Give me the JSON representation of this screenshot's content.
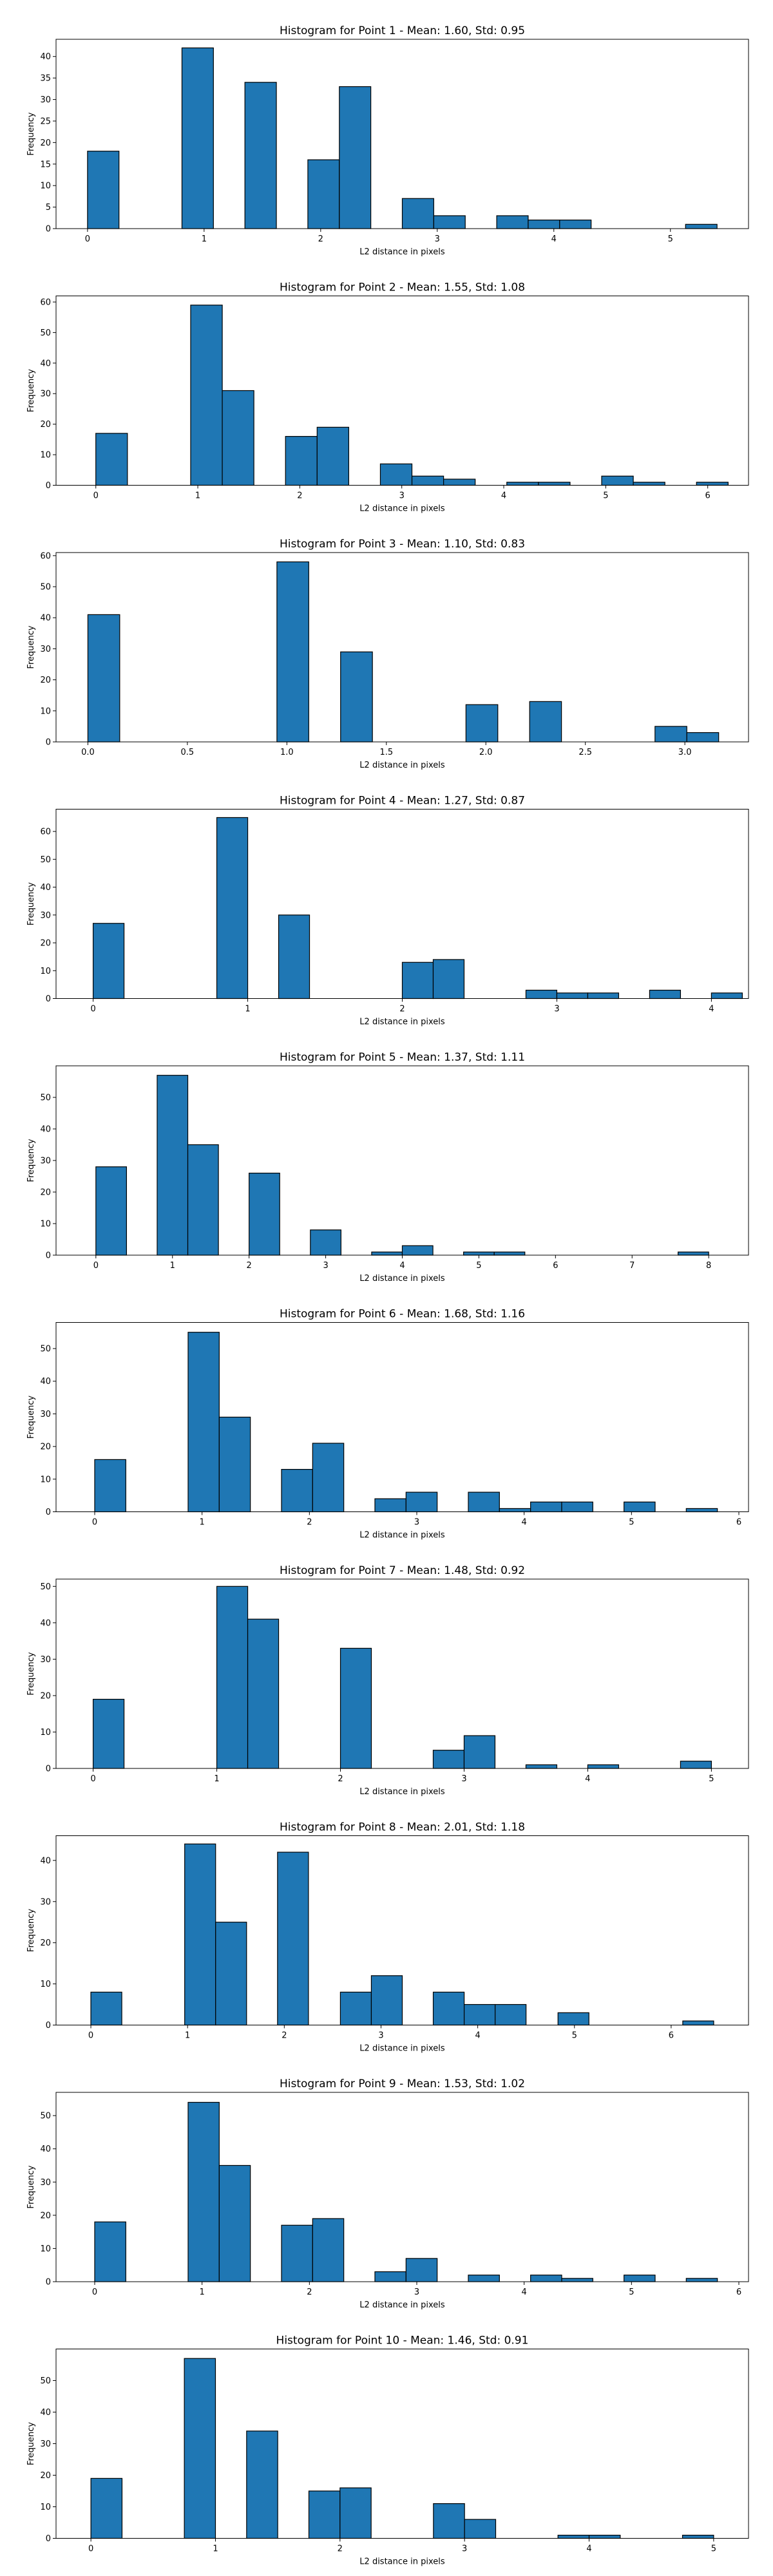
{
  "colors": {
    "bar_fill": "#1f77b4",
    "bar_edge": "#000000"
  },
  "chart_data": [
    {
      "type": "bar",
      "title": "Histogram for Point 1 - Mean: 1.60, Std: 0.95",
      "xlabel": "L2 distance in pixels",
      "ylabel": "Frequency",
      "xlim": [
        -0.27,
        5.67
      ],
      "xticks": [
        0,
        1,
        2,
        3,
        4,
        5
      ],
      "yticks": [
        0,
        5,
        10,
        15,
        20,
        25,
        30,
        35,
        40
      ],
      "ylim": [
        0,
        44
      ],
      "grid": false,
      "bins": [
        {
          "x0": 0.0,
          "x1": 0.27,
          "count": 18
        },
        {
          "x0": 0.81,
          "x1": 1.08,
          "count": 42
        },
        {
          "x0": 1.35,
          "x1": 1.62,
          "count": 34
        },
        {
          "x0": 1.89,
          "x1": 2.16,
          "count": 16
        },
        {
          "x0": 2.16,
          "x1": 2.43,
          "count": 33
        },
        {
          "x0": 2.7,
          "x1": 2.97,
          "count": 7
        },
        {
          "x0": 2.97,
          "x1": 3.24,
          "count": 3
        },
        {
          "x0": 3.51,
          "x1": 3.78,
          "count": 3
        },
        {
          "x0": 3.78,
          "x1": 4.05,
          "count": 2
        },
        {
          "x0": 4.05,
          "x1": 4.32,
          "count": 2
        },
        {
          "x0": 5.13,
          "x1": 5.4,
          "count": 1
        }
      ]
    },
    {
      "type": "bar",
      "title": "Histogram for Point 2 - Mean: 1.55, Std: 1.08",
      "xlabel": "L2 distance in pixels",
      "ylabel": "Frequency",
      "xlim": [
        -0.39,
        6.4
      ],
      "xticks": [
        0,
        1,
        2,
        3,
        4,
        5,
        6
      ],
      "yticks": [
        0,
        10,
        20,
        30,
        40,
        50,
        60
      ],
      "ylim": [
        0,
        62
      ],
      "grid": false,
      "bins": [
        {
          "x0": 0.0,
          "x1": 0.31,
          "count": 17
        },
        {
          "x0": 0.93,
          "x1": 1.24,
          "count": 59
        },
        {
          "x0": 1.24,
          "x1": 1.55,
          "count": 31
        },
        {
          "x0": 1.86,
          "x1": 2.17,
          "count": 16
        },
        {
          "x0": 2.17,
          "x1": 2.48,
          "count": 19
        },
        {
          "x0": 2.79,
          "x1": 3.1,
          "count": 7
        },
        {
          "x0": 3.1,
          "x1": 3.41,
          "count": 3
        },
        {
          "x0": 3.41,
          "x1": 3.72,
          "count": 2
        },
        {
          "x0": 4.03,
          "x1": 4.34,
          "count": 1
        },
        {
          "x0": 4.34,
          "x1": 4.65,
          "count": 1
        },
        {
          "x0": 4.96,
          "x1": 5.27,
          "count": 3
        },
        {
          "x0": 5.27,
          "x1": 5.58,
          "count": 1
        },
        {
          "x0": 5.89,
          "x1": 6.2,
          "count": 1
        }
      ]
    },
    {
      "type": "bar",
      "title": "Histogram for Point 3 - Mean: 1.10, Std: 0.83",
      "xlabel": "L2 distance in pixels",
      "ylabel": "Frequency",
      "xlim": [
        -0.16,
        3.32
      ],
      "xticks": [
        0.0,
        0.5,
        1.0,
        1.5,
        2.0,
        2.5,
        3.0
      ],
      "xtick_labels": [
        "0.0",
        "0.5",
        "1.0",
        "1.5",
        "2.0",
        "2.5",
        "3.0"
      ],
      "yticks": [
        0,
        10,
        20,
        30,
        40,
        50,
        60
      ],
      "ylim": [
        0,
        61
      ],
      "grid": false,
      "bins": [
        {
          "x0": 0.0,
          "x1": 0.16,
          "count": 41
        },
        {
          "x0": 0.95,
          "x1": 1.11,
          "count": 58
        },
        {
          "x0": 1.27,
          "x1": 1.43,
          "count": 29
        },
        {
          "x0": 1.9,
          "x1": 2.06,
          "count": 12
        },
        {
          "x0": 2.22,
          "x1": 2.38,
          "count": 13
        },
        {
          "x0": 2.85,
          "x1": 3.01,
          "count": 5
        },
        {
          "x0": 3.01,
          "x1": 3.17,
          "count": 3
        }
      ]
    },
    {
      "type": "bar",
      "title": "Histogram for Point 4 - Mean: 1.27, Std: 0.87",
      "xlabel": "L2 distance in pixels",
      "ylabel": "Frequency",
      "xlim": [
        -0.24,
        4.24
      ],
      "xticks": [
        0,
        1,
        2,
        3,
        4
      ],
      "yticks": [
        0,
        10,
        20,
        30,
        40,
        50,
        60
      ],
      "ylim": [
        0,
        68
      ],
      "grid": false,
      "bins": [
        {
          "x0": 0.0,
          "x1": 0.2,
          "count": 27
        },
        {
          "x0": 0.8,
          "x1": 1.0,
          "count": 65
        },
        {
          "x0": 1.2,
          "x1": 1.4,
          "count": 30
        },
        {
          "x0": 2.0,
          "x1": 2.2,
          "count": 13
        },
        {
          "x0": 2.2,
          "x1": 2.4,
          "count": 14
        },
        {
          "x0": 2.8,
          "x1": 3.0,
          "count": 3
        },
        {
          "x0": 3.0,
          "x1": 3.2,
          "count": 2
        },
        {
          "x0": 3.2,
          "x1": 3.4,
          "count": 2
        },
        {
          "x0": 3.6,
          "x1": 3.8,
          "count": 3
        },
        {
          "x0": 4.0,
          "x1": 4.2,
          "count": 2
        }
      ]
    },
    {
      "type": "bar",
      "title": "Histogram for Point 5 - Mean: 1.37, Std: 1.11",
      "xlabel": "L2 distance in pixels",
      "ylabel": "Frequency",
      "xlim": [
        -0.52,
        8.52
      ],
      "xticks": [
        0,
        1,
        2,
        3,
        4,
        5,
        6,
        7,
        8
      ],
      "yticks": [
        0,
        10,
        20,
        30,
        40,
        50
      ],
      "ylim": [
        0,
        60
      ],
      "grid": false,
      "bins": [
        {
          "x0": 0.0,
          "x1": 0.4,
          "count": 28
        },
        {
          "x0": 0.8,
          "x1": 1.2,
          "count": 57
        },
        {
          "x0": 1.2,
          "x1": 1.6,
          "count": 35
        },
        {
          "x0": 2.0,
          "x1": 2.4,
          "count": 26
        },
        {
          "x0": 2.8,
          "x1": 3.2,
          "count": 8
        },
        {
          "x0": 3.6,
          "x1": 4.0,
          "count": 1
        },
        {
          "x0": 4.0,
          "x1": 4.4,
          "count": 3
        },
        {
          "x0": 4.8,
          "x1": 5.2,
          "count": 1
        },
        {
          "x0": 5.2,
          "x1": 5.6,
          "count": 1
        },
        {
          "x0": 7.6,
          "x1": 8.0,
          "count": 1
        }
      ]
    },
    {
      "type": "bar",
      "title": "Histogram for Point 6 - Mean: 1.68, Std: 1.16",
      "xlabel": "L2 distance in pixels",
      "ylabel": "Frequency",
      "xlim": [
        -0.36,
        6.09
      ],
      "xticks": [
        0,
        1,
        2,
        3,
        4,
        5,
        6
      ],
      "yticks": [
        0,
        10,
        20,
        30,
        40,
        50
      ],
      "ylim": [
        0,
        58
      ],
      "grid": false,
      "bins": [
        {
          "x0": 0.0,
          "x1": 0.29,
          "count": 16
        },
        {
          "x0": 0.87,
          "x1": 1.16,
          "count": 55
        },
        {
          "x0": 1.16,
          "x1": 1.45,
          "count": 29
        },
        {
          "x0": 1.74,
          "x1": 2.03,
          "count": 13
        },
        {
          "x0": 2.03,
          "x1": 2.32,
          "count": 21
        },
        {
          "x0": 2.61,
          "x1": 2.9,
          "count": 4
        },
        {
          "x0": 2.9,
          "x1": 3.19,
          "count": 6
        },
        {
          "x0": 3.48,
          "x1": 3.77,
          "count": 6
        },
        {
          "x0": 3.77,
          "x1": 4.06,
          "count": 1
        },
        {
          "x0": 4.06,
          "x1": 4.35,
          "count": 3
        },
        {
          "x0": 4.35,
          "x1": 4.64,
          "count": 3
        },
        {
          "x0": 4.93,
          "x1": 5.22,
          "count": 3
        },
        {
          "x0": 5.51,
          "x1": 5.8,
          "count": 1
        }
      ]
    },
    {
      "type": "bar",
      "title": "Histogram for Point 7 - Mean: 1.48, Std: 0.92",
      "xlabel": "L2 distance in pixels",
      "ylabel": "Frequency",
      "xlim": [
        -0.3,
        5.3
      ],
      "xticks": [
        0,
        1,
        2,
        3,
        4,
        5
      ],
      "yticks": [
        0,
        10,
        20,
        30,
        40,
        50
      ],
      "ylim": [
        0,
        52
      ],
      "grid": false,
      "bins": [
        {
          "x0": 0.0,
          "x1": 0.25,
          "count": 19
        },
        {
          "x0": 1.0,
          "x1": 1.25,
          "count": 50
        },
        {
          "x0": 1.25,
          "x1": 1.5,
          "count": 41
        },
        {
          "x0": 2.0,
          "x1": 2.25,
          "count": 33
        },
        {
          "x0": 2.75,
          "x1": 3.0,
          "count": 5
        },
        {
          "x0": 3.0,
          "x1": 3.25,
          "count": 9
        },
        {
          "x0": 3.5,
          "x1": 3.75,
          "count": 1
        },
        {
          "x0": 4.0,
          "x1": 4.25,
          "count": 1
        },
        {
          "x0": 4.75,
          "x1": 5.0,
          "count": 2
        }
      ]
    },
    {
      "type": "bar",
      "title": "Histogram for Point 8 - Mean: 2.01, Std: 1.18",
      "xlabel": "L2 distance in pixels",
      "ylabel": "Frequency",
      "xlim": [
        -0.36,
        6.8
      ],
      "xticks": [
        0,
        1,
        2,
        3,
        4,
        5,
        6
      ],
      "yticks": [
        0,
        10,
        20,
        30,
        40
      ],
      "ylim": [
        0,
        46
      ],
      "grid": false,
      "bins": [
        {
          "x0": 0.0,
          "x1": 0.32,
          "count": 8
        },
        {
          "x0": 0.97,
          "x1": 1.29,
          "count": 44
        },
        {
          "x0": 1.29,
          "x1": 1.61,
          "count": 25
        },
        {
          "x0": 1.93,
          "x1": 2.25,
          "count": 42
        },
        {
          "x0": 2.58,
          "x1": 2.9,
          "count": 8
        },
        {
          "x0": 2.9,
          "x1": 3.22,
          "count": 12
        },
        {
          "x0": 3.54,
          "x1": 3.86,
          "count": 8
        },
        {
          "x0": 3.86,
          "x1": 4.18,
          "count": 5
        },
        {
          "x0": 4.18,
          "x1": 4.5,
          "count": 5
        },
        {
          "x0": 4.83,
          "x1": 5.15,
          "count": 3
        },
        {
          "x0": 6.12,
          "x1": 6.44,
          "count": 1
        }
      ]
    },
    {
      "type": "bar",
      "title": "Histogram for Point 9 - Mean: 1.53, Std: 1.02",
      "xlabel": "L2 distance in pixels",
      "ylabel": "Frequency",
      "xlim": [
        -0.36,
        6.09
      ],
      "xticks": [
        0,
        1,
        2,
        3,
        4,
        5,
        6
      ],
      "yticks": [
        0,
        10,
        20,
        30,
        40,
        50
      ],
      "ylim": [
        0,
        57
      ],
      "grid": false,
      "bins": [
        {
          "x0": 0.0,
          "x1": 0.29,
          "count": 18
        },
        {
          "x0": 0.87,
          "x1": 1.16,
          "count": 54
        },
        {
          "x0": 1.16,
          "x1": 1.45,
          "count": 35
        },
        {
          "x0": 1.74,
          "x1": 2.03,
          "count": 17
        },
        {
          "x0": 2.03,
          "x1": 2.32,
          "count": 19
        },
        {
          "x0": 2.61,
          "x1": 2.9,
          "count": 3
        },
        {
          "x0": 2.9,
          "x1": 3.19,
          "count": 7
        },
        {
          "x0": 3.48,
          "x1": 3.77,
          "count": 2
        },
        {
          "x0": 4.06,
          "x1": 4.35,
          "count": 2
        },
        {
          "x0": 4.35,
          "x1": 4.64,
          "count": 1
        },
        {
          "x0": 4.93,
          "x1": 5.22,
          "count": 2
        },
        {
          "x0": 5.51,
          "x1": 5.8,
          "count": 1
        }
      ]
    },
    {
      "type": "bar",
      "title": "Histogram for Point 10 - Mean: 1.46, Std: 0.91",
      "xlabel": "L2 distance in pixels",
      "ylabel": "Frequency",
      "xlim": [
        -0.28,
        5.28
      ],
      "xticks": [
        0,
        1,
        2,
        3,
        4,
        5
      ],
      "yticks": [
        0,
        10,
        20,
        30,
        40,
        50
      ],
      "ylim": [
        0,
        60
      ],
      "grid": false,
      "bins": [
        {
          "x0": 0.0,
          "x1": 0.25,
          "count": 19
        },
        {
          "x0": 0.75,
          "x1": 1.0,
          "count": 57
        },
        {
          "x0": 1.25,
          "x1": 1.5,
          "count": 34
        },
        {
          "x0": 1.75,
          "x1": 2.0,
          "count": 15
        },
        {
          "x0": 2.0,
          "x1": 2.25,
          "count": 16
        },
        {
          "x0": 2.75,
          "x1": 3.0,
          "count": 11
        },
        {
          "x0": 3.0,
          "x1": 3.25,
          "count": 6
        },
        {
          "x0": 3.75,
          "x1": 4.0,
          "count": 1
        },
        {
          "x0": 4.0,
          "x1": 4.25,
          "count": 1
        },
        {
          "x0": 4.75,
          "x1": 5.0,
          "count": 1
        }
      ]
    }
  ]
}
